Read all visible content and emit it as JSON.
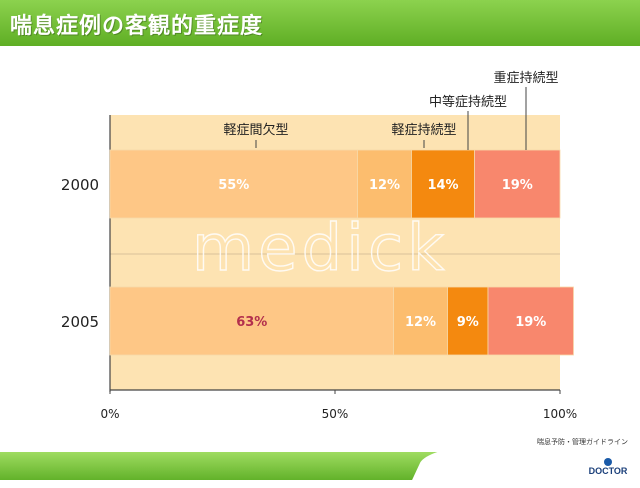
{
  "header": {
    "title": "喘息症例の客観的重症度"
  },
  "source_note": "喘息予防・管理ガイドライン",
  "logo": {
    "text": "DOCTOR",
    "icon": "doctor-logo-icon"
  },
  "watermark": "medick",
  "colors": {
    "band": "#fde3b2",
    "category_colors": [
      "#fec786",
      "#fcbd6e",
      "#f4890f",
      "#f8876d"
    ],
    "label_text": "#ffffff",
    "highlight_label": "#b3304d"
  },
  "chart_data": {
    "type": "bar",
    "orientation": "horizontal",
    "stacked": true,
    "categories": [
      "2000",
      "2005"
    ],
    "series": [
      {
        "name": "軽症間欠型",
        "values": [
          55,
          63
        ],
        "labels": [
          "55%",
          "63%"
        ]
      },
      {
        "name": "軽症持続型",
        "values": [
          12,
          12
        ],
        "labels": [
          "12%",
          "12%"
        ]
      },
      {
        "name": "中等症持続型",
        "values": [
          14,
          9
        ],
        "labels": [
          "14%",
          "9%"
        ]
      },
      {
        "name": "重症持続型",
        "values": [
          19,
          19
        ],
        "labels": [
          "19%",
          "19%"
        ]
      }
    ],
    "xlim": [
      0,
      100
    ],
    "ticks": [
      "0%",
      "50%",
      "100%"
    ],
    "legend": "callouts-above"
  }
}
